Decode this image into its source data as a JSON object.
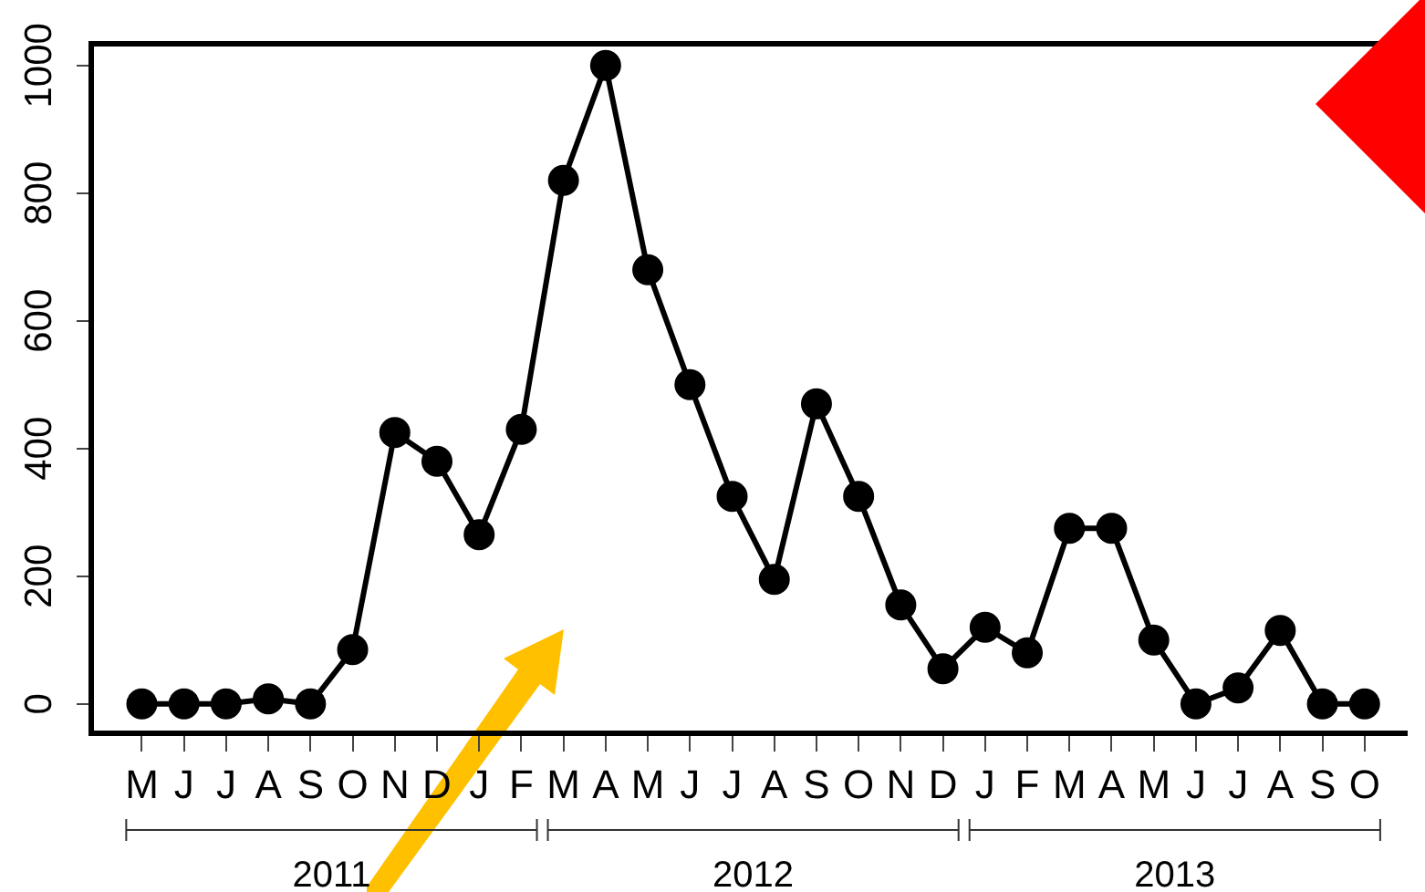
{
  "chart_data": {
    "type": "line",
    "categories": [
      "M",
      "J",
      "J",
      "A",
      "S",
      "O",
      "N",
      "D",
      "J",
      "F",
      "M",
      "A",
      "M",
      "J",
      "J",
      "A",
      "S",
      "O",
      "N",
      "D",
      "J",
      "F",
      "M",
      "A",
      "M",
      "J",
      "J",
      "A",
      "S",
      "O"
    ],
    "annotations": [
      "2011",
      "2012",
      "2013"
    ],
    "values": [
      0,
      0,
      0,
      8,
      0,
      85,
      425,
      380,
      265,
      430,
      820,
      1000,
      680,
      500,
      325,
      195,
      470,
      325,
      155,
      55,
      120,
      80,
      275,
      275,
      100,
      0,
      25,
      115,
      0,
      0
    ],
    "color": "#000000",
    "marker": "circle",
    "line_style": "solid",
    "grid": false,
    "legend": false,
    "ylim": [
      -46,
      1034
    ],
    "yticks": [
      0,
      200,
      400,
      600,
      800,
      1000
    ]
  }
}
